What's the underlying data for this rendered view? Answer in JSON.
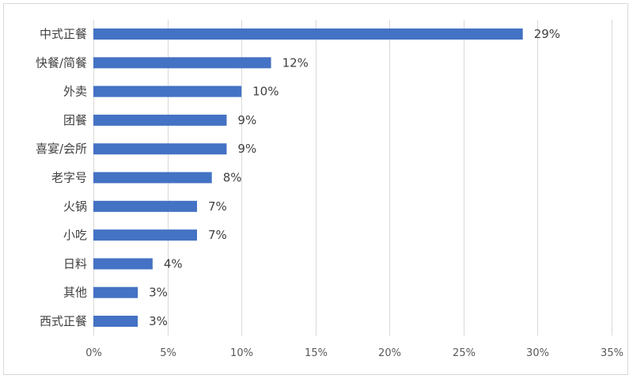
{
  "chart_data": {
    "type": "bar",
    "orientation": "horizontal",
    "categories": [
      "中式正餐",
      "快餐/简餐",
      "外卖",
      "团餐",
      "喜宴/会所",
      "老字号",
      "火锅",
      "小吃",
      "日料",
      "其他",
      "西式正餐"
    ],
    "values": [
      29,
      12,
      10,
      9,
      9,
      8,
      7,
      7,
      4,
      3,
      3
    ],
    "value_labels": [
      "29%",
      "12%",
      "10%",
      "9%",
      "9%",
      "8%",
      "7%",
      "7%",
      "4%",
      "3%",
      "3%"
    ],
    "xticks": [
      0,
      5,
      10,
      15,
      20,
      25,
      30,
      35
    ],
    "xtick_labels": [
      "0%",
      "5%",
      "10%",
      "15%",
      "20%",
      "25%",
      "30%",
      "35%"
    ],
    "xlim": [
      0,
      35
    ],
    "grid": "vertical",
    "legend": "none",
    "bar_color": "#4472c4"
  }
}
